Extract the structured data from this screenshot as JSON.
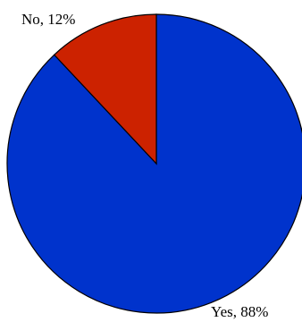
{
  "chart_data": {
    "type": "pie",
    "title": "",
    "categories": [
      "Yes",
      "No"
    ],
    "values": [
      88,
      12
    ],
    "unit": "%",
    "labels": [
      "Yes, 88%",
      "No, 12%"
    ],
    "colors": [
      "#0033cc",
      "#cc2200"
    ],
    "start_angle_deg": 0,
    "direction": "clockwise",
    "legend": "none"
  }
}
